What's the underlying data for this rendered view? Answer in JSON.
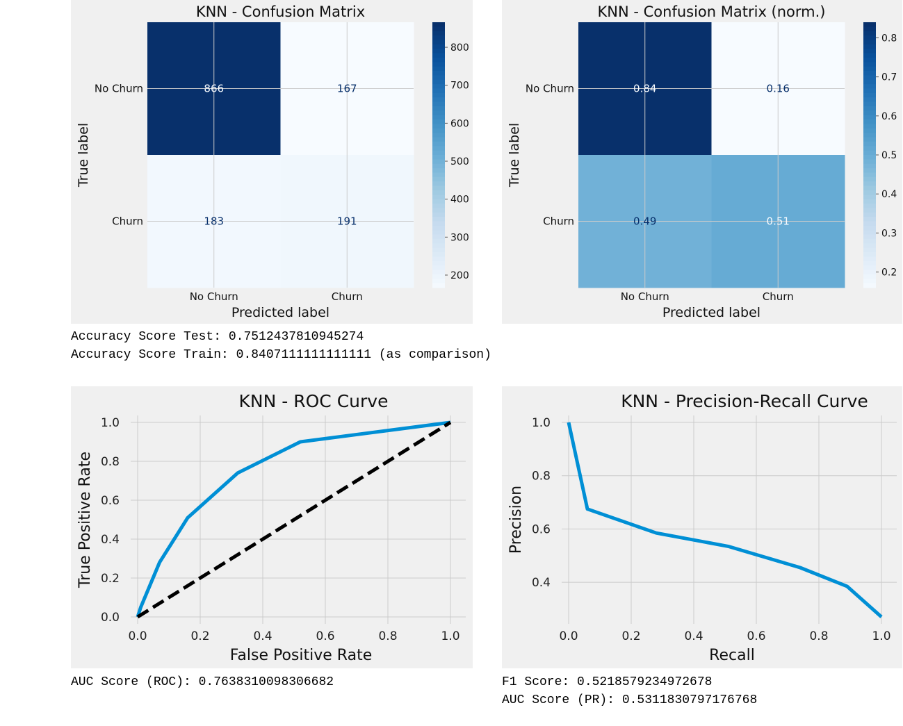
{
  "cm_counts": {
    "title": "KNN - Confusion Matrix",
    "xlabel": "Predicted label",
    "ylabel": "True label",
    "row_labels": [
      "No Churn",
      "Churn"
    ],
    "col_labels": [
      "No Churn",
      "Churn"
    ],
    "cells": [
      [
        "866",
        "167"
      ],
      [
        "183",
        "191"
      ]
    ],
    "colorbar_ticks": [
      "800",
      "700",
      "600",
      "500",
      "400",
      "300",
      "200"
    ]
  },
  "cm_norm": {
    "title": "KNN - Confusion Matrix (norm.)",
    "xlabel": "Predicted label",
    "ylabel": "True label",
    "row_labels": [
      "No Churn",
      "Churn"
    ],
    "col_labels": [
      "No Churn",
      "Churn"
    ],
    "cells": [
      [
        "0.84",
        "0.16"
      ],
      [
        "0.49",
        "0.51"
      ]
    ],
    "colorbar_ticks": [
      "0.8",
      "0.7",
      "0.6",
      "0.5",
      "0.4",
      "0.3",
      "0.2"
    ]
  },
  "accuracy": {
    "test": "Accuracy Score Test: 0.7512437810945274",
    "train": "Accuracy Score Train: 0.8407111111111111 (as comparison)"
  },
  "roc": {
    "title": "KNN - ROC Curve",
    "xlabel": "False Positive Rate",
    "ylabel": "True Positive Rate",
    "xticks": [
      "0.0",
      "0.2",
      "0.4",
      "0.6",
      "0.8",
      "1.0"
    ],
    "yticks": [
      "0.0",
      "0.2",
      "0.4",
      "0.6",
      "0.8",
      "1.0"
    ],
    "auc_text": "AUC Score (ROC): 0.7638310098306682"
  },
  "pr": {
    "title": "KNN - Precision-Recall Curve",
    "xlabel": "Recall",
    "ylabel": "Precision",
    "xticks": [
      "0.0",
      "0.2",
      "0.4",
      "0.6",
      "0.8",
      "1.0"
    ],
    "yticks": [
      "0.4",
      "0.6",
      "0.8",
      "1.0"
    ],
    "f1_text": "F1 Score: 0.5218579234972678",
    "auc_text": "AUC Score (PR): 0.5311830797176768"
  },
  "chart_data": [
    {
      "type": "heatmap",
      "title": "KNN - Confusion Matrix",
      "xlabel": "Predicted label",
      "ylabel": "True label",
      "rows": [
        "No Churn",
        "Churn"
      ],
      "cols": [
        "No Churn",
        "Churn"
      ],
      "values": [
        [
          866,
          167
        ],
        [
          183,
          191
        ]
      ],
      "colorbar_range": [
        167,
        866
      ],
      "colormap": "Blues"
    },
    {
      "type": "heatmap",
      "title": "KNN - Confusion Matrix (norm.)",
      "xlabel": "Predicted label",
      "ylabel": "True label",
      "rows": [
        "No Churn",
        "Churn"
      ],
      "cols": [
        "No Churn",
        "Churn"
      ],
      "values": [
        [
          0.84,
          0.16
        ],
        [
          0.49,
          0.51
        ]
      ],
      "colorbar_range": [
        0.16,
        0.84
      ],
      "colormap": "Blues"
    },
    {
      "type": "line",
      "title": "KNN - ROC Curve",
      "xlabel": "False Positive Rate",
      "ylabel": "True Positive Rate",
      "xlim": [
        0,
        1
      ],
      "ylim": [
        0,
        1
      ],
      "grid": true,
      "series": [
        {
          "x": [
            0.0,
            0.01,
            0.07,
            0.16,
            0.32,
            0.52,
            1.0
          ],
          "y": [
            0.0,
            0.05,
            0.28,
            0.51,
            0.74,
            0.9,
            1.0
          ],
          "color": "#008fd5"
        },
        {
          "x": [
            0.0,
            1.0
          ],
          "y": [
            0.0,
            1.0
          ],
          "color": "#000000",
          "style": "dashed"
        }
      ]
    },
    {
      "type": "line",
      "title": "KNN - Precision-Recall Curve",
      "xlabel": "Recall",
      "ylabel": "Precision",
      "xlim": [
        0,
        1
      ],
      "ylim": [
        0.27,
        1.0
      ],
      "grid": true,
      "series": [
        {
          "x": [
            0.0,
            0.06,
            0.28,
            0.51,
            0.74,
            0.89,
            1.0
          ],
          "y": [
            1.0,
            0.675,
            0.585,
            0.535,
            0.455,
            0.385,
            0.27
          ],
          "color": "#008fd5"
        }
      ]
    }
  ]
}
